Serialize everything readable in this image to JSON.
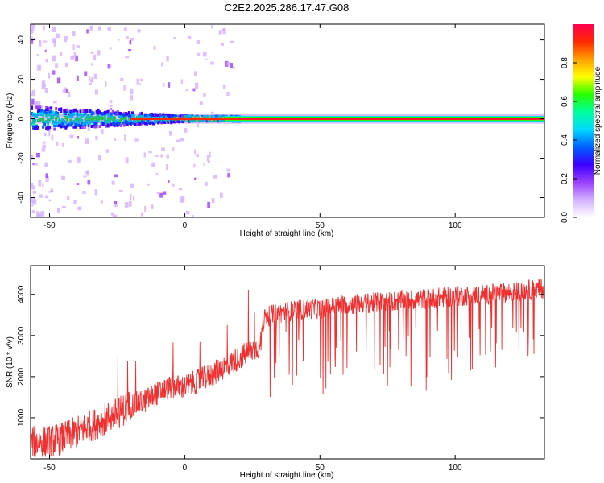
{
  "title": "C2E2.2025.286.17.47.G08",
  "colors": {
    "snr_line": "#f03030",
    "frame": "#000000",
    "colormap": [
      "#ffffff",
      "#d4b0ff",
      "#9a40ff",
      "#3a00ff",
      "#0060ff",
      "#00d8ff",
      "#00ff9c",
      "#28ff00",
      "#ffff00",
      "#ffa000",
      "#ff2800",
      "#ff0050"
    ]
  },
  "chart_data": [
    {
      "type": "heatmap",
      "name": "spectrogram",
      "xlabel": "Height of straight line (km)",
      "ylabel": "Frequency (Hz)",
      "xlim": [
        -57,
        133
      ],
      "ylim": [
        -50,
        48
      ],
      "xticks": [
        -50,
        0,
        50,
        100
      ],
      "xtick_labels": [
        "-50",
        "0",
        "50",
        "100"
      ],
      "yticks": [
        -40,
        -20,
        0,
        20,
        40
      ],
      "ytick_labels": [
        "-40",
        "-20",
        "0",
        "20",
        "40"
      ],
      "z_description": "dominant energy at ~0 Hz across all heights; broadened (about ±5 Hz) below 0 km, narrow line above",
      "colorbar": {
        "label": "Normalized spectral amplitude",
        "range": [
          0,
          1
        ],
        "ticks": [
          0,
          0.2,
          0.4,
          0.6,
          0.8
        ],
        "tick_labels": [
          "0.0",
          "0.2",
          "0.4",
          "0.6",
          "0.8"
        ]
      }
    },
    {
      "type": "line",
      "name": "snr",
      "xlabel": "Height of straight line (km)",
      "ylabel": "SNR (10 * v/v)",
      "xlim": [
        -57,
        133
      ],
      "ylim": [
        0,
        4700
      ],
      "xticks": [
        -50,
        0,
        50,
        100
      ],
      "xtick_labels": [
        "-50",
        "0",
        "50",
        "100"
      ],
      "yticks": [
        1000,
        2000,
        3000,
        4000
      ],
      "ytick_labels": [
        "1000",
        "2000",
        "3000",
        "4000"
      ],
      "series": [
        {
          "name": "SNR",
          "x": [
            -57,
            -50,
            -45,
            -40,
            -35,
            -30,
            -25,
            -20,
            -15,
            -10,
            -5,
            0,
            5,
            10,
            15,
            20,
            25,
            28,
            29,
            30,
            35,
            40,
            45,
            50,
            55,
            60,
            70,
            80,
            90,
            100,
            110,
            120,
            133
          ],
          "values": [
            400,
            420,
            500,
            650,
            800,
            950,
            1100,
            1300,
            1400,
            1600,
            1750,
            1750,
            1900,
            2050,
            2250,
            2450,
            2650,
            2750,
            3300,
            3450,
            3550,
            3600,
            3650,
            3650,
            3700,
            3750,
            3800,
            3850,
            3900,
            3950,
            4000,
            4050,
            4150
          ],
          "noise_amplitude_description": "strong high-frequency fluctuation (roughly ±300–500) with frequent deep downward spikes above 30 km"
        }
      ]
    }
  ]
}
